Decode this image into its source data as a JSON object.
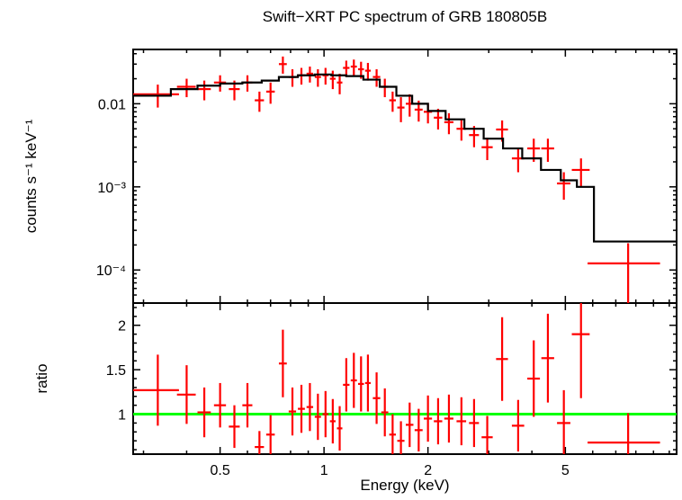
{
  "title": "Swift−XRT PC spectrum of GRB 180805B",
  "colors": {
    "background": "#ffffff",
    "axis": "#000000",
    "data": "#ff0000",
    "model": "#000000",
    "reference_line": "#00ff00"
  },
  "chart_data": [
    {
      "type": "scatter",
      "panel": "spectrum",
      "title": "Swift−XRT PC spectrum of GRB 180805B",
      "xlabel": "Energy (keV)",
      "ylabel": "counts s⁻¹ keV⁻¹",
      "xscale": "log",
      "yscale": "log",
      "xlim": [
        0.28,
        10.5
      ],
      "ylim": [
        4e-05,
        0.045
      ],
      "grid": false,
      "legend": "none",
      "xticks": [
        {
          "v": 0.5,
          "label": "0.5"
        },
        {
          "v": 1,
          "label": "1"
        },
        {
          "v": 2,
          "label": "2"
        },
        {
          "v": 5,
          "label": "5"
        }
      ],
      "yticks": [
        {
          "v": 0.01,
          "label": "0.01"
        },
        {
          "v": 0.001,
          "label": "10⁻³"
        },
        {
          "v": 0.0001,
          "label": "10⁻⁴"
        }
      ],
      "data_color": "#ff0000",
      "model_color": "#000000",
      "model_step": {
        "edges": [
          0.28,
          0.36,
          0.43,
          0.5,
          0.58,
          0.66,
          0.74,
          0.84,
          0.94,
          1.05,
          1.16,
          1.3,
          1.45,
          1.62,
          1.8,
          2.0,
          2.25,
          2.55,
          2.9,
          3.3,
          3.75,
          4.25,
          4.85,
          5.4,
          6.05,
          10.5
        ],
        "values": [
          0.0125,
          0.015,
          0.0165,
          0.0175,
          0.018,
          0.019,
          0.021,
          0.022,
          0.0225,
          0.022,
          0.0215,
          0.0195,
          0.016,
          0.0125,
          0.01,
          0.0082,
          0.0065,
          0.005,
          0.0038,
          0.0029,
          0.0022,
          0.0016,
          0.0012,
          0.001,
          0.00022
        ]
      },
      "points": [
        {
          "e": 0.33,
          "xw": 0.05,
          "rate": 0.013,
          "err": 0.004
        },
        {
          "e": 0.4,
          "xw": 0.025,
          "rate": 0.016,
          "err": 0.004
        },
        {
          "e": 0.45,
          "xw": 0.02,
          "rate": 0.015,
          "err": 0.004
        },
        {
          "e": 0.5,
          "xw": 0.02,
          "rate": 0.018,
          "err": 0.004
        },
        {
          "e": 0.55,
          "xw": 0.02,
          "rate": 0.015,
          "err": 0.004
        },
        {
          "e": 0.6,
          "xw": 0.02,
          "rate": 0.018,
          "err": 0.004
        },
        {
          "e": 0.65,
          "xw": 0.02,
          "rate": 0.011,
          "err": 0.003
        },
        {
          "e": 0.7,
          "xw": 0.02,
          "rate": 0.014,
          "err": 0.004
        },
        {
          "e": 0.76,
          "xw": 0.02,
          "rate": 0.03,
          "err": 0.007
        },
        {
          "e": 0.81,
          "xw": 0.02,
          "rate": 0.021,
          "err": 0.005
        },
        {
          "e": 0.86,
          "xw": 0.02,
          "rate": 0.022,
          "err": 0.005
        },
        {
          "e": 0.91,
          "xw": 0.02,
          "rate": 0.023,
          "err": 0.005
        },
        {
          "e": 0.96,
          "xw": 0.02,
          "rate": 0.021,
          "err": 0.005
        },
        {
          "e": 1.01,
          "xw": 0.02,
          "rate": 0.022,
          "err": 0.005
        },
        {
          "e": 1.06,
          "xw": 0.02,
          "rate": 0.02,
          "err": 0.005
        },
        {
          "e": 1.11,
          "xw": 0.02,
          "rate": 0.018,
          "err": 0.005
        },
        {
          "e": 1.16,
          "xw": 0.025,
          "rate": 0.027,
          "err": 0.006
        },
        {
          "e": 1.22,
          "xw": 0.025,
          "rate": 0.028,
          "err": 0.006
        },
        {
          "e": 1.28,
          "xw": 0.025,
          "rate": 0.026,
          "err": 0.006
        },
        {
          "e": 1.34,
          "xw": 0.025,
          "rate": 0.025,
          "err": 0.006
        },
        {
          "e": 1.42,
          "xw": 0.035,
          "rate": 0.021,
          "err": 0.005
        },
        {
          "e": 1.5,
          "xw": 0.035,
          "rate": 0.016,
          "err": 0.004
        },
        {
          "e": 1.58,
          "xw": 0.035,
          "rate": 0.011,
          "err": 0.003
        },
        {
          "e": 1.67,
          "xw": 0.04,
          "rate": 0.009,
          "err": 0.003
        },
        {
          "e": 1.77,
          "xw": 0.045,
          "rate": 0.01,
          "err": 0.003
        },
        {
          "e": 1.88,
          "xw": 0.05,
          "rate": 0.0085,
          "err": 0.0024
        },
        {
          "e": 2.0,
          "xw": 0.055,
          "rate": 0.008,
          "err": 0.0022
        },
        {
          "e": 2.14,
          "xw": 0.06,
          "rate": 0.0068,
          "err": 0.0019
        },
        {
          "e": 2.3,
          "xw": 0.07,
          "rate": 0.006,
          "err": 0.0017
        },
        {
          "e": 2.5,
          "xw": 0.08,
          "rate": 0.005,
          "err": 0.0014
        },
        {
          "e": 2.72,
          "xw": 0.09,
          "rate": 0.0042,
          "err": 0.0012
        },
        {
          "e": 2.97,
          "xw": 0.11,
          "rate": 0.003,
          "err": 0.0009
        },
        {
          "e": 3.28,
          "xw": 0.13,
          "rate": 0.0049,
          "err": 0.0014
        },
        {
          "e": 3.65,
          "xw": 0.15,
          "rate": 0.0022,
          "err": 0.0007
        },
        {
          "e": 4.05,
          "xw": 0.17,
          "rate": 0.0029,
          "err": 0.0009
        },
        {
          "e": 4.45,
          "xw": 0.19,
          "rate": 0.0029,
          "err": 0.0009
        },
        {
          "e": 4.95,
          "xw": 0.22,
          "rate": 0.0011,
          "err": 0.0004
        },
        {
          "e": 5.55,
          "xw": 0.33,
          "rate": 0.0016,
          "err": 0.0006
        },
        {
          "e": 7.6,
          "xw": 1.8,
          "rate": 0.00012,
          "err": 9e-05
        }
      ]
    },
    {
      "type": "scatter",
      "panel": "ratio",
      "ylabel": "ratio",
      "xscale": "log",
      "yscale": "linear",
      "xlim": [
        0.28,
        10.5
      ],
      "ylim": [
        0.55,
        2.25
      ],
      "grid": false,
      "yticks": [
        {
          "v": 1,
          "label": "1"
        },
        {
          "v": 1.5,
          "label": "1.5"
        },
        {
          "v": 2,
          "label": "2"
        }
      ],
      "reference_line": {
        "y": 1,
        "color": "#00ff00"
      },
      "data_color": "#ff0000",
      "points": [
        {
          "e": 0.33,
          "xw": 0.05,
          "ratio": 1.27,
          "err": 0.4
        },
        {
          "e": 0.4,
          "xw": 0.025,
          "ratio": 1.22,
          "err": 0.33
        },
        {
          "e": 0.45,
          "xw": 0.02,
          "ratio": 1.02,
          "err": 0.28
        },
        {
          "e": 0.5,
          "xw": 0.02,
          "ratio": 1.1,
          "err": 0.25
        },
        {
          "e": 0.55,
          "xw": 0.02,
          "ratio": 0.86,
          "err": 0.24
        },
        {
          "e": 0.6,
          "xw": 0.02,
          "ratio": 1.1,
          "err": 0.25
        },
        {
          "e": 0.65,
          "xw": 0.02,
          "ratio": 0.63,
          "err": 0.18
        },
        {
          "e": 0.7,
          "xw": 0.02,
          "ratio": 0.77,
          "err": 0.22
        },
        {
          "e": 0.76,
          "xw": 0.02,
          "ratio": 1.57,
          "err": 0.38
        },
        {
          "e": 0.81,
          "xw": 0.02,
          "ratio": 1.03,
          "err": 0.27
        },
        {
          "e": 0.86,
          "xw": 0.02,
          "ratio": 1.06,
          "err": 0.27
        },
        {
          "e": 0.91,
          "xw": 0.02,
          "ratio": 1.08,
          "err": 0.27
        },
        {
          "e": 0.96,
          "xw": 0.02,
          "ratio": 0.97,
          "err": 0.26
        },
        {
          "e": 1.01,
          "xw": 0.02,
          "ratio": 1.0,
          "err": 0.26
        },
        {
          "e": 1.06,
          "xw": 0.02,
          "ratio": 0.92,
          "err": 0.25
        },
        {
          "e": 1.11,
          "xw": 0.02,
          "ratio": 0.84,
          "err": 0.25
        },
        {
          "e": 1.16,
          "xw": 0.025,
          "ratio": 1.33,
          "err": 0.3
        },
        {
          "e": 1.22,
          "xw": 0.025,
          "ratio": 1.38,
          "err": 0.31
        },
        {
          "e": 1.28,
          "xw": 0.025,
          "ratio": 1.34,
          "err": 0.31
        },
        {
          "e": 1.34,
          "xw": 0.025,
          "ratio": 1.35,
          "err": 0.32
        },
        {
          "e": 1.42,
          "xw": 0.035,
          "ratio": 1.18,
          "err": 0.29
        },
        {
          "e": 1.5,
          "xw": 0.035,
          "ratio": 1.02,
          "err": 0.27
        },
        {
          "e": 1.58,
          "xw": 0.035,
          "ratio": 0.77,
          "err": 0.23
        },
        {
          "e": 1.67,
          "xw": 0.04,
          "ratio": 0.7,
          "err": 0.22
        },
        {
          "e": 1.77,
          "xw": 0.045,
          "ratio": 0.88,
          "err": 0.25
        },
        {
          "e": 1.88,
          "xw": 0.05,
          "ratio": 0.82,
          "err": 0.24
        },
        {
          "e": 2.0,
          "xw": 0.055,
          "ratio": 0.95,
          "err": 0.26
        },
        {
          "e": 2.14,
          "xw": 0.06,
          "ratio": 0.92,
          "err": 0.26
        },
        {
          "e": 2.3,
          "xw": 0.07,
          "ratio": 0.95,
          "err": 0.27
        },
        {
          "e": 2.5,
          "xw": 0.08,
          "ratio": 0.92,
          "err": 0.27
        },
        {
          "e": 2.72,
          "xw": 0.09,
          "ratio": 0.9,
          "err": 0.27
        },
        {
          "e": 2.97,
          "xw": 0.11,
          "ratio": 0.74,
          "err": 0.24
        },
        {
          "e": 3.28,
          "xw": 0.13,
          "ratio": 1.62,
          "err": 0.47
        },
        {
          "e": 3.65,
          "xw": 0.15,
          "ratio": 0.87,
          "err": 0.29
        },
        {
          "e": 4.05,
          "xw": 0.17,
          "ratio": 1.4,
          "err": 0.43
        },
        {
          "e": 4.45,
          "xw": 0.19,
          "ratio": 1.63,
          "err": 0.5
        },
        {
          "e": 4.95,
          "xw": 0.22,
          "ratio": 0.9,
          "err": 0.37
        },
        {
          "e": 5.55,
          "xw": 0.33,
          "ratio": 1.9,
          "err": 0.72
        },
        {
          "e": 7.6,
          "xw": 1.8,
          "ratio": 0.68,
          "err": 0.33
        }
      ]
    }
  ]
}
